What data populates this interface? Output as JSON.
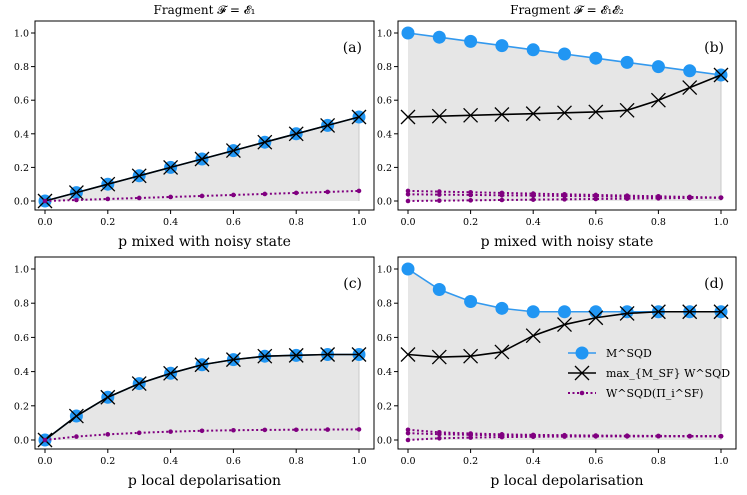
{
  "colors": {
    "blue": "#2196f3",
    "blue_line": "#3399ee",
    "black": "#000000",
    "purple": "#800080",
    "shade": "#e6e6e6"
  },
  "chart_data": [
    {
      "type": "line",
      "title": "Fragment 𝓕 = 𝓔₁",
      "panel_label": "(a)",
      "xlabel": "p mixed with noisy state",
      "ylabel": "",
      "xlim": [
        0,
        1
      ],
      "ylim": [
        0,
        1
      ],
      "xticks": [
        "0.0",
        "0.2",
        "0.4",
        "0.6",
        "0.8",
        "1.0"
      ],
      "yticks": [
        "0.0",
        "0.2",
        "0.4",
        "0.6",
        "0.8",
        "1.0"
      ],
      "x": [
        0,
        0.1,
        0.2,
        0.3,
        0.4,
        0.5,
        0.6,
        0.7,
        0.8,
        0.9,
        1.0
      ],
      "series": [
        {
          "name": "M^SQD",
          "values": [
            0,
            0.05,
            0.1,
            0.15,
            0.2,
            0.25,
            0.3,
            0.35,
            0.4,
            0.45,
            0.5
          ]
        },
        {
          "name": "max W^SQD",
          "values": [
            0,
            0.05,
            0.1,
            0.15,
            0.2,
            0.25,
            0.3,
            0.35,
            0.4,
            0.45,
            0.5
          ]
        },
        {
          "name": "W^SQD(Π_i^SF)",
          "values": [
            0,
            0.006,
            0.012,
            0.018,
            0.024,
            0.03,
            0.036,
            0.042,
            0.048,
            0.054,
            0.06
          ]
        }
      ]
    },
    {
      "type": "line",
      "title": "Fragment 𝓕 = 𝓔₁𝓔₂",
      "panel_label": "(b)",
      "xlabel": "p mixed with noisy state",
      "ylabel": "",
      "xlim": [
        0,
        1
      ],
      "ylim": [
        0,
        1
      ],
      "xticks": [
        "0.0",
        "0.2",
        "0.4",
        "0.6",
        "0.8",
        "1.0"
      ],
      "yticks": [
        "0.0",
        "0.2",
        "0.4",
        "0.6",
        "0.8",
        "1.0"
      ],
      "x": [
        0,
        0.1,
        0.2,
        0.3,
        0.4,
        0.5,
        0.6,
        0.7,
        0.8,
        0.9,
        1.0
      ],
      "series": [
        {
          "name": "M^SQD",
          "values": [
            1.0,
            0.975,
            0.95,
            0.925,
            0.9,
            0.875,
            0.85,
            0.825,
            0.8,
            0.775,
            0.75
          ]
        },
        {
          "name": "max W^SQD",
          "values": [
            0.5,
            0.505,
            0.51,
            0.515,
            0.52,
            0.525,
            0.53,
            0.54,
            0.6,
            0.675,
            0.75
          ]
        },
        {
          "name": "W^SQD(Π_i^SF) upper",
          "values": [
            0.06,
            0.056,
            0.052,
            0.048,
            0.044,
            0.04,
            0.036,
            0.032,
            0.028,
            0.024,
            0.02
          ]
        },
        {
          "name": "W^SQD(Π_i^SF) mid",
          "values": [
            0.04,
            0.038,
            0.036,
            0.034,
            0.032,
            0.03,
            0.028,
            0.026,
            0.024,
            0.022,
            0.02
          ]
        },
        {
          "name": "W^SQD(Π_i^SF) lower",
          "values": [
            0,
            0.002,
            0.004,
            0.006,
            0.008,
            0.01,
            0.012,
            0.014,
            0.016,
            0.018,
            0.02
          ]
        }
      ]
    },
    {
      "type": "line",
      "title": "",
      "panel_label": "(c)",
      "xlabel": "p local depolarisation",
      "ylabel": "",
      "xlim": [
        0,
        1
      ],
      "ylim": [
        0,
        1
      ],
      "xticks": [
        "0.0",
        "0.2",
        "0.4",
        "0.6",
        "0.8",
        "1.0"
      ],
      "yticks": [
        "0.0",
        "0.2",
        "0.4",
        "0.6",
        "0.8",
        "1.0"
      ],
      "x": [
        0,
        0.1,
        0.2,
        0.3,
        0.4,
        0.5,
        0.6,
        0.7,
        0.8,
        0.9,
        1.0
      ],
      "series": [
        {
          "name": "M^SQD",
          "values": [
            0,
            0.14,
            0.25,
            0.33,
            0.39,
            0.44,
            0.47,
            0.49,
            0.495,
            0.5,
            0.5
          ]
        },
        {
          "name": "max W^SQD",
          "values": [
            0,
            0.14,
            0.25,
            0.33,
            0.39,
            0.44,
            0.47,
            0.49,
            0.495,
            0.5,
            0.5
          ]
        },
        {
          "name": "W^SQD(Π_i^SF)",
          "values": [
            0,
            0.02,
            0.033,
            0.042,
            0.049,
            0.054,
            0.057,
            0.059,
            0.06,
            0.061,
            0.062
          ]
        }
      ]
    },
    {
      "type": "line",
      "title": "",
      "panel_label": "(d)",
      "xlabel": "p local depolarisation",
      "ylabel": "",
      "xlim": [
        0,
        1
      ],
      "ylim": [
        0,
        1
      ],
      "xticks": [
        "0.0",
        "0.2",
        "0.4",
        "0.6",
        "0.8",
        "1.0"
      ],
      "yticks": [
        "0.0",
        "0.2",
        "0.4",
        "0.6",
        "0.8",
        "1.0"
      ],
      "x": [
        0,
        0.1,
        0.2,
        0.3,
        0.4,
        0.5,
        0.6,
        0.7,
        0.8,
        0.9,
        1.0
      ],
      "legend": {
        "placement": "center-right",
        "entries": [
          "M^SQD",
          "max_{M_SF} W^SQD",
          "W^SQD(Π_i^SF)"
        ]
      },
      "series": [
        {
          "name": "M^SQD",
          "values": [
            1.0,
            0.88,
            0.81,
            0.77,
            0.75,
            0.75,
            0.75,
            0.75,
            0.75,
            0.75,
            0.75
          ]
        },
        {
          "name": "max W^SQD",
          "values": [
            0.5,
            0.485,
            0.49,
            0.515,
            0.61,
            0.675,
            0.715,
            0.74,
            0.75,
            0.75,
            0.75
          ]
        },
        {
          "name": "W^SQD(Π_i^SF) upper",
          "values": [
            0.06,
            0.045,
            0.038,
            0.033,
            0.03,
            0.028,
            0.026,
            0.025,
            0.024,
            0.023,
            0.022
          ]
        },
        {
          "name": "W^SQD(Π_i^SF) mid",
          "values": [
            0.04,
            0.034,
            0.03,
            0.028,
            0.026,
            0.025,
            0.024,
            0.023,
            0.022,
            0.022,
            0.022
          ]
        },
        {
          "name": "W^SQD(Π_i^SF) lower",
          "values": [
            0,
            0.01,
            0.014,
            0.017,
            0.019,
            0.02,
            0.021,
            0.021,
            0.022,
            0.022,
            0.022
          ]
        }
      ]
    }
  ]
}
